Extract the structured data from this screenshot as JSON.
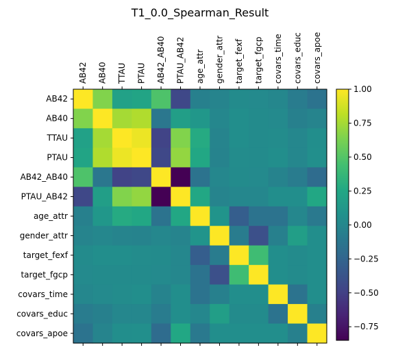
{
  "chart_data": {
    "type": "heatmap",
    "title": "T1_0.0_Spearman_Result",
    "labels": [
      "AB42",
      "AB40",
      "TTAU",
      "PTAU",
      "AB42_AB40",
      "PTAU_AB42",
      "age_attr",
      "gender_attr",
      "target_fexf",
      "target_fgcp",
      "covars_time",
      "covars_educ",
      "covars_apoe"
    ],
    "matrix": [
      [
        1.0,
        0.65,
        0.2,
        0.23,
        0.48,
        -0.45,
        -0.05,
        -0.02,
        0.03,
        0.02,
        0.0,
        -0.08,
        -0.15
      ],
      [
        0.65,
        1.0,
        0.75,
        0.78,
        -0.12,
        0.18,
        0.12,
        0.0,
        0.05,
        0.03,
        0.02,
        -0.05,
        -0.02
      ],
      [
        0.2,
        0.75,
        1.0,
        0.95,
        -0.48,
        0.65,
        0.28,
        -0.02,
        0.05,
        0.03,
        0.04,
        0.0,
        0.05
      ],
      [
        0.23,
        0.78,
        0.95,
        1.0,
        -0.45,
        0.7,
        0.25,
        -0.03,
        0.04,
        0.03,
        0.05,
        0.0,
        0.06
      ],
      [
        0.48,
        -0.12,
        -0.48,
        -0.45,
        1.0,
        -0.85,
        -0.15,
        0.0,
        0.03,
        0.02,
        -0.03,
        -0.08,
        -0.2
      ],
      [
        -0.45,
        0.18,
        0.65,
        0.7,
        -0.85,
        1.0,
        0.25,
        -0.02,
        0.0,
        0.0,
        0.05,
        0.05,
        0.25
      ],
      [
        -0.05,
        0.12,
        0.28,
        0.25,
        -0.15,
        0.25,
        1.0,
        0.1,
        -0.3,
        -0.15,
        -0.15,
        0.0,
        -0.1
      ],
      [
        -0.02,
        0.0,
        -0.02,
        -0.03,
        0.0,
        -0.02,
        0.1,
        1.0,
        -0.08,
        -0.4,
        -0.05,
        0.18,
        0.05
      ],
      [
        0.03,
        0.05,
        0.05,
        0.04,
        0.03,
        0.0,
        -0.3,
        -0.08,
        1.0,
        0.42,
        0.05,
        0.03,
        0.05
      ],
      [
        0.02,
        0.03,
        0.03,
        0.03,
        0.02,
        0.0,
        -0.15,
        -0.4,
        0.42,
        1.0,
        0.05,
        0.03,
        0.05
      ],
      [
        0.0,
        0.02,
        0.04,
        0.05,
        -0.03,
        0.05,
        -0.15,
        -0.05,
        0.05,
        0.05,
        1.0,
        -0.15,
        0.05
      ],
      [
        -0.08,
        -0.05,
        0.0,
        0.0,
        -0.08,
        0.05,
        0.0,
        0.18,
        0.03,
        0.03,
        -0.15,
        1.0,
        -0.05
      ],
      [
        -0.15,
        -0.02,
        0.05,
        0.06,
        -0.2,
        0.25,
        -0.1,
        0.05,
        0.05,
        0.05,
        0.05,
        -0.05,
        1.0
      ]
    ],
    "colorbar": {
      "min": -0.85,
      "max": 1.0,
      "ticks": [
        -0.75,
        -0.5,
        -0.25,
        0.0,
        0.25,
        0.5,
        0.75,
        1.0
      ],
      "tick_labels": [
        "−0.75",
        "−0.50",
        "−0.25",
        "0.00",
        "0.25",
        "0.50",
        "0.75",
        "1.00"
      ],
      "colormap": "viridis"
    },
    "x_tick_position": "top",
    "grid": false
  }
}
